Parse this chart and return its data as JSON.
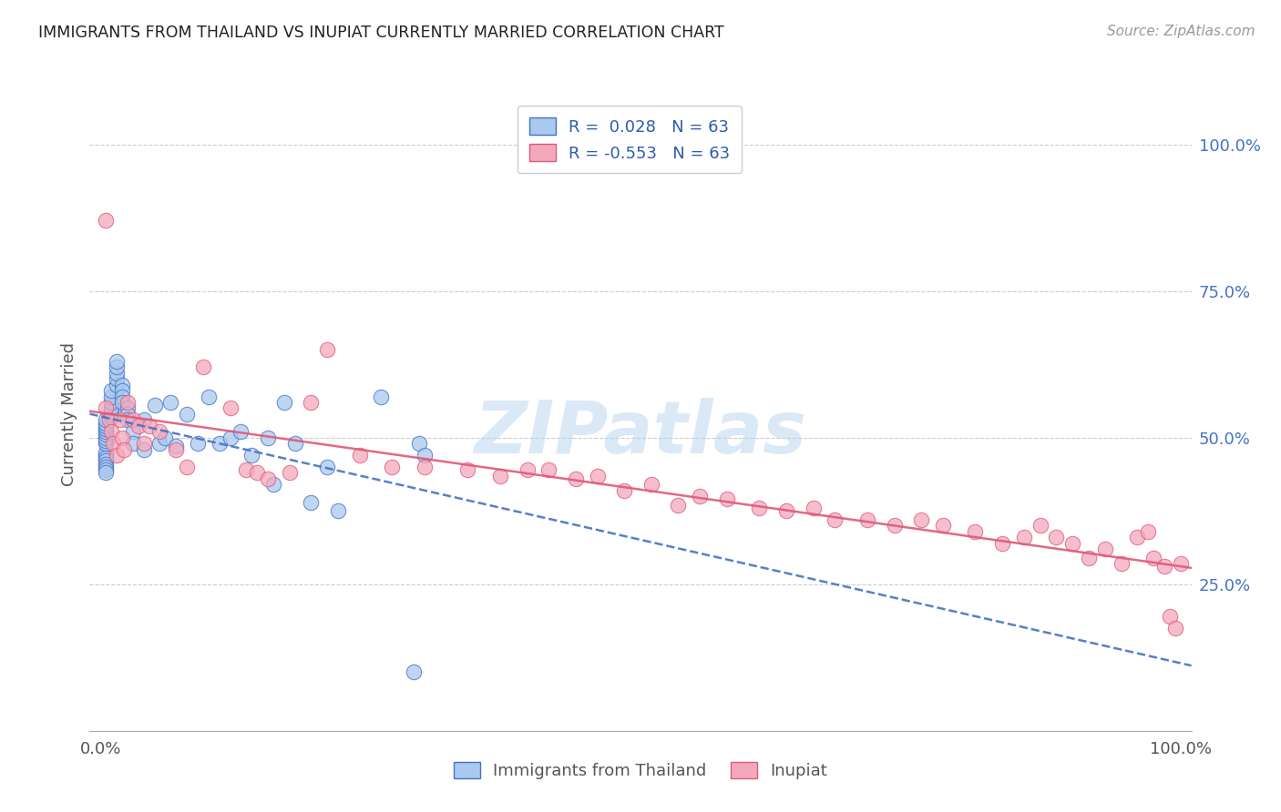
{
  "title": "IMMIGRANTS FROM THAILAND VS INUPIAT CURRENTLY MARRIED CORRELATION CHART",
  "source": "Source: ZipAtlas.com",
  "ylabel": "Currently Married",
  "right_yticks": [
    "100.0%",
    "75.0%",
    "50.0%",
    "25.0%"
  ],
  "right_ytick_vals": [
    1.0,
    0.75,
    0.5,
    0.25
  ],
  "legend_label1": "Immigrants from Thailand",
  "legend_label2": "Inupiat",
  "R1": 0.028,
  "N1": 63,
  "R2": -0.553,
  "N2": 63,
  "color_blue": "#aac9ee",
  "color_pink": "#f4a8bc",
  "color_blue_line": "#4472c4",
  "color_pink_line": "#e05878",
  "watermark": "ZIPatlas",
  "blue_x": [
    0.005,
    0.005,
    0.005,
    0.005,
    0.005,
    0.005,
    0.005,
    0.005,
    0.005,
    0.005,
    0.005,
    0.005,
    0.005,
    0.005,
    0.005,
    0.005,
    0.005,
    0.01,
    0.01,
    0.01,
    0.01,
    0.01,
    0.01,
    0.01,
    0.015,
    0.015,
    0.015,
    0.015,
    0.015,
    0.02,
    0.02,
    0.02,
    0.02,
    0.025,
    0.025,
    0.025,
    0.03,
    0.03,
    0.04,
    0.04,
    0.05,
    0.055,
    0.06,
    0.065,
    0.07,
    0.08,
    0.09,
    0.1,
    0.11,
    0.12,
    0.13,
    0.14,
    0.155,
    0.16,
    0.17,
    0.18,
    0.195,
    0.21,
    0.22,
    0.26,
    0.29,
    0.295,
    0.3
  ],
  "blue_y": [
    0.47,
    0.475,
    0.465,
    0.46,
    0.455,
    0.45,
    0.445,
    0.49,
    0.495,
    0.5,
    0.505,
    0.51,
    0.515,
    0.52,
    0.525,
    0.53,
    0.44,
    0.535,
    0.54,
    0.545,
    0.55,
    0.56,
    0.57,
    0.58,
    0.59,
    0.6,
    0.61,
    0.62,
    0.63,
    0.59,
    0.58,
    0.57,
    0.56,
    0.55,
    0.54,
    0.53,
    0.51,
    0.49,
    0.53,
    0.48,
    0.555,
    0.49,
    0.5,
    0.56,
    0.485,
    0.54,
    0.49,
    0.57,
    0.49,
    0.5,
    0.51,
    0.47,
    0.5,
    0.42,
    0.56,
    0.49,
    0.39,
    0.45,
    0.375,
    0.57,
    0.1,
    0.49,
    0.47
  ],
  "pink_x": [
    0.005,
    0.005,
    0.008,
    0.01,
    0.012,
    0.015,
    0.018,
    0.02,
    0.022,
    0.025,
    0.03,
    0.035,
    0.04,
    0.045,
    0.055,
    0.07,
    0.08,
    0.095,
    0.12,
    0.135,
    0.145,
    0.155,
    0.175,
    0.195,
    0.21,
    0.24,
    0.27,
    0.3,
    0.34,
    0.37,
    0.395,
    0.415,
    0.44,
    0.46,
    0.485,
    0.51,
    0.535,
    0.555,
    0.58,
    0.61,
    0.635,
    0.66,
    0.68,
    0.71,
    0.735,
    0.76,
    0.78,
    0.81,
    0.835,
    0.855,
    0.87,
    0.885,
    0.9,
    0.915,
    0.93,
    0.945,
    0.96,
    0.97,
    0.975,
    0.985,
    0.99,
    0.995,
    1.0
  ],
  "pink_y": [
    0.87,
    0.55,
    0.53,
    0.51,
    0.49,
    0.47,
    0.53,
    0.5,
    0.48,
    0.56,
    0.53,
    0.52,
    0.49,
    0.52,
    0.51,
    0.48,
    0.45,
    0.62,
    0.55,
    0.445,
    0.44,
    0.43,
    0.44,
    0.56,
    0.65,
    0.47,
    0.45,
    0.45,
    0.445,
    0.435,
    0.445,
    0.445,
    0.43,
    0.435,
    0.41,
    0.42,
    0.385,
    0.4,
    0.395,
    0.38,
    0.375,
    0.38,
    0.36,
    0.36,
    0.35,
    0.36,
    0.35,
    0.34,
    0.32,
    0.33,
    0.35,
    0.33,
    0.32,
    0.295,
    0.31,
    0.285,
    0.33,
    0.34,
    0.295,
    0.28,
    0.195,
    0.175,
    0.285
  ]
}
